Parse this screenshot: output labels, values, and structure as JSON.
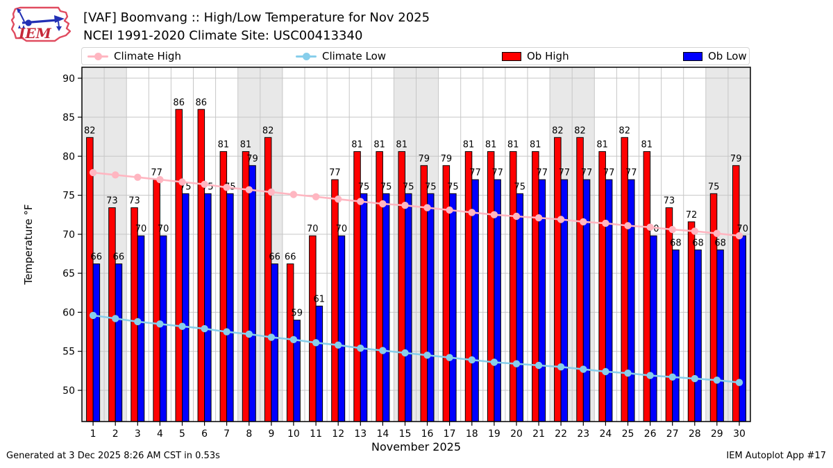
{
  "header": {
    "logo_text": "IEM",
    "title_line1": "[VAF] Boomvang :: High/Low Temperature for Nov 2025",
    "title_line2": "NCEI 1991-2020 Climate Site: USC00413340"
  },
  "legend": {
    "items": [
      {
        "label": "Climate High",
        "type": "line",
        "color": "#ffb6c1"
      },
      {
        "label": "Climate Low",
        "type": "line",
        "color": "#87ceeb"
      },
      {
        "label": "Ob High",
        "type": "rect",
        "color": "#ff0000"
      },
      {
        "label": "Ob Low",
        "type": "rect",
        "color": "#0000ff"
      }
    ]
  },
  "footer": {
    "left": "Generated at 3 Dec 2025 8:26 AM CST in 0.53s",
    "right": "IEM Autoplot App #17"
  },
  "chart_data": {
    "type": "bar",
    "title": "[VAF] Boomvang :: High/Low Temperature for Nov 2025",
    "subtitle": "NCEI 1991-2020 Climate Site: USC00413340",
    "xlabel": "November 2025",
    "ylabel": "Temperature °F",
    "ylim": [
      46.0,
      91.4
    ],
    "yticks": [
      50,
      55,
      60,
      65,
      70,
      75,
      80,
      85,
      90
    ],
    "grid": true,
    "legend_position": "top",
    "days": [
      1,
      2,
      3,
      4,
      5,
      6,
      7,
      8,
      9,
      10,
      11,
      12,
      13,
      14,
      15,
      16,
      17,
      18,
      19,
      20,
      21,
      22,
      23,
      24,
      25,
      26,
      27,
      28,
      29,
      30
    ],
    "weekend_bands": [
      [
        1,
        2
      ],
      [
        8,
        9
      ],
      [
        15,
        16
      ],
      [
        22,
        23
      ],
      [
        29,
        30
      ]
    ],
    "colors": {
      "band": "#e8e8e8",
      "grid": "#c6c6c6",
      "spine": "#000000"
    },
    "series": [
      {
        "name": "Ob High",
        "type": "bar",
        "color": "#ff0000",
        "labels": [
          82,
          73,
          73,
          77,
          86,
          86,
          81,
          81,
          82,
          66,
          70,
          77,
          81,
          81,
          81,
          79,
          79,
          81,
          81,
          81,
          81,
          82,
          82,
          81,
          82,
          81,
          73,
          72,
          75,
          79
        ],
        "values": [
          82.4,
          73.4,
          73.4,
          77,
          86,
          86,
          80.6,
          80.6,
          82.4,
          66.2,
          69.8,
          77,
          80.6,
          80.6,
          80.6,
          78.8,
          78.8,
          80.6,
          80.6,
          80.6,
          80.6,
          82.4,
          82.4,
          80.6,
          82.4,
          80.6,
          73.4,
          71.6,
          75.2,
          78.8
        ]
      },
      {
        "name": "Ob Low",
        "type": "bar",
        "color": "#0000ff",
        "labels": [
          66,
          66,
          70,
          70,
          75,
          75,
          75,
          79,
          66,
          59,
          61,
          70,
          75,
          75,
          75,
          75,
          75,
          77,
          77,
          75,
          77,
          77,
          77,
          77,
          77,
          70,
          68,
          68,
          68,
          70
        ],
        "values": [
          66.2,
          66.2,
          69.8,
          69.8,
          75.2,
          75.2,
          75.2,
          78.8,
          66.2,
          59,
          60.8,
          69.8,
          75.2,
          75.2,
          75.2,
          75.2,
          75.2,
          77,
          77,
          75.2,
          77,
          77,
          77,
          77,
          77,
          69.8,
          68,
          68,
          68,
          69.8
        ]
      },
      {
        "name": "Climate High",
        "type": "line",
        "color": "#ffb6c1",
        "values": [
          77.9,
          77.6,
          77.3,
          77,
          76.7,
          76.4,
          76,
          75.7,
          75.4,
          75.1,
          74.8,
          74.5,
          74.2,
          73.9,
          73.7,
          73.4,
          73.1,
          72.8,
          72.5,
          72.3,
          72.1,
          71.9,
          71.6,
          71.4,
          71.1,
          70.9,
          70.6,
          70.4,
          70.1,
          69.8
        ]
      },
      {
        "name": "Climate Low",
        "type": "line",
        "color": "#87ceeb",
        "values": [
          59.6,
          59.2,
          58.8,
          58.5,
          58.2,
          57.9,
          57.5,
          57.2,
          56.8,
          56.5,
          56.1,
          55.8,
          55.4,
          55.1,
          54.8,
          54.5,
          54.2,
          53.9,
          53.6,
          53.4,
          53.2,
          53,
          52.7,
          52.4,
          52.2,
          51.9,
          51.7,
          51.5,
          51.3,
          51
        ]
      }
    ]
  }
}
